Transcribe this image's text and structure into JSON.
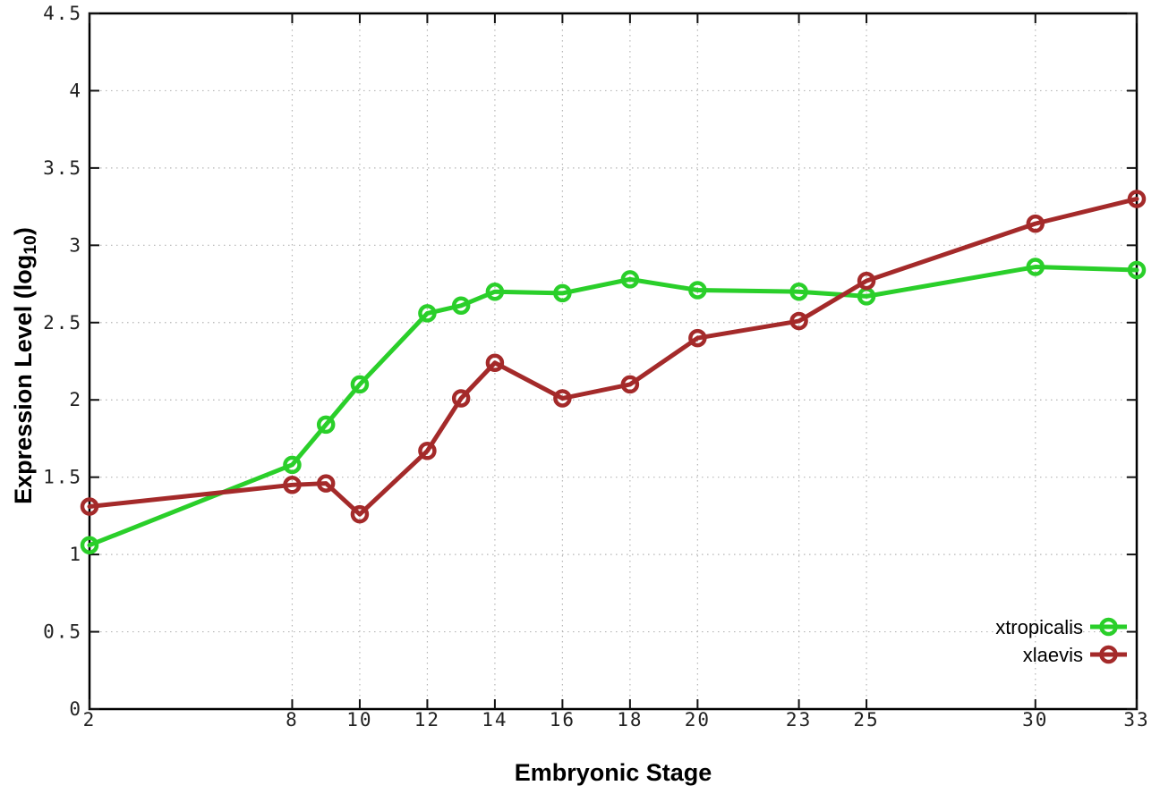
{
  "figure": {
    "background": "#ffffff",
    "xlabel": "Embryonic Stage",
    "ylabel_prefix": "Expression Level (log",
    "ylabel_sub": "10",
    "ylabel_suffix": ")"
  },
  "chart_data": {
    "type": "line",
    "title": "",
    "xlabel": "Embryonic Stage",
    "ylabel": "Expression Level (log10)",
    "x": [
      2,
      8,
      9,
      10,
      12,
      13,
      14,
      16,
      18,
      20,
      23,
      25,
      30,
      33
    ],
    "series": [
      {
        "name": "xtropicalis",
        "color": "#2ACF2A",
        "values": [
          1.06,
          1.58,
          1.84,
          2.1,
          2.56,
          2.61,
          2.7,
          2.69,
          2.78,
          2.71,
          2.7,
          2.67,
          2.86,
          2.84
        ]
      },
      {
        "name": "xlaevis",
        "color": "#A42A2A",
        "values": [
          1.31,
          1.45,
          1.46,
          1.26,
          1.67,
          2.01,
          2.24,
          2.01,
          2.1,
          2.4,
          2.51,
          2.77,
          3.14,
          3.3
        ]
      }
    ],
    "xlim": [
      2,
      33
    ],
    "ylim": [
      0,
      4.5
    ],
    "x_ticks": [
      2,
      8,
      10,
      12,
      14,
      16,
      18,
      20,
      23,
      25,
      30,
      33
    ],
    "x_tick_labels": [
      "2",
      "8",
      "10",
      "12",
      "14",
      "16",
      "18",
      "20",
      "23",
      "25",
      "30",
      "33"
    ],
    "y_ticks": [
      0,
      0.5,
      1,
      1.5,
      2,
      2.5,
      3,
      3.5,
      4,
      4.5
    ],
    "y_tick_labels": [
      "0",
      "0.5",
      "1",
      "1.5",
      "2",
      "2.5",
      "3",
      "3.5",
      "4",
      "4.5"
    ],
    "grid": true,
    "grid_color": "#b5b5b5",
    "border_color": "#000000",
    "tick_color": "#111111",
    "text_color": "#222222",
    "legend_position": "bottom-right-inside",
    "marker": "open-circle"
  }
}
